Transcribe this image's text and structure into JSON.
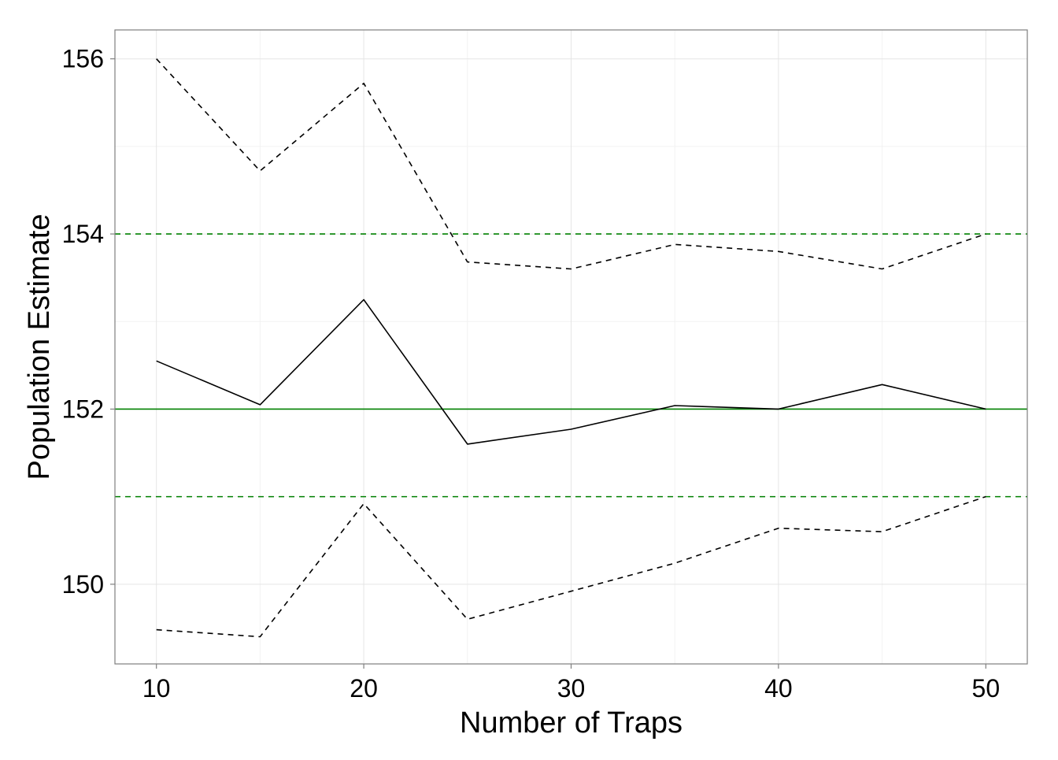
{
  "chart_data": {
    "type": "line",
    "title": "",
    "xlabel": "Number of Traps",
    "ylabel": "Population Estimate",
    "x": [
      10,
      15,
      20,
      25,
      30,
      35,
      40,
      45,
      50
    ],
    "series": [
      {
        "style": "solid",
        "color": "#000000",
        "values": [
          152.55,
          152.05,
          153.25,
          151.6,
          151.77,
          152.04,
          152.0,
          152.28,
          152.0
        ]
      },
      {
        "style": "dashed",
        "color": "#000000",
        "values": [
          156.0,
          154.72,
          155.72,
          153.68,
          153.6,
          153.88,
          153.8,
          153.6,
          154.0
        ]
      },
      {
        "style": "dashed",
        "color": "#000000",
        "values": [
          149.48,
          149.4,
          150.92,
          149.6,
          149.92,
          150.24,
          150.64,
          150.6,
          151.0
        ]
      }
    ],
    "reference_lines": [
      {
        "y": 152,
        "style": "solid",
        "color": "#008000"
      },
      {
        "y": 154,
        "style": "dashed",
        "color": "#008000"
      },
      {
        "y": 151,
        "style": "dashed",
        "color": "#008000"
      }
    ],
    "x_ticks": [
      10,
      20,
      30,
      40,
      50
    ],
    "x_tick_labels": [
      "10",
      "20",
      "30",
      "40",
      "50"
    ],
    "y_ticks": [
      150,
      152,
      154,
      156
    ],
    "y_tick_labels": [
      "150",
      "152",
      "154",
      "156"
    ],
    "xlim": [
      8,
      52
    ],
    "ylim": [
      149.09,
      156.33
    ],
    "grid": true,
    "legend": "none"
  }
}
